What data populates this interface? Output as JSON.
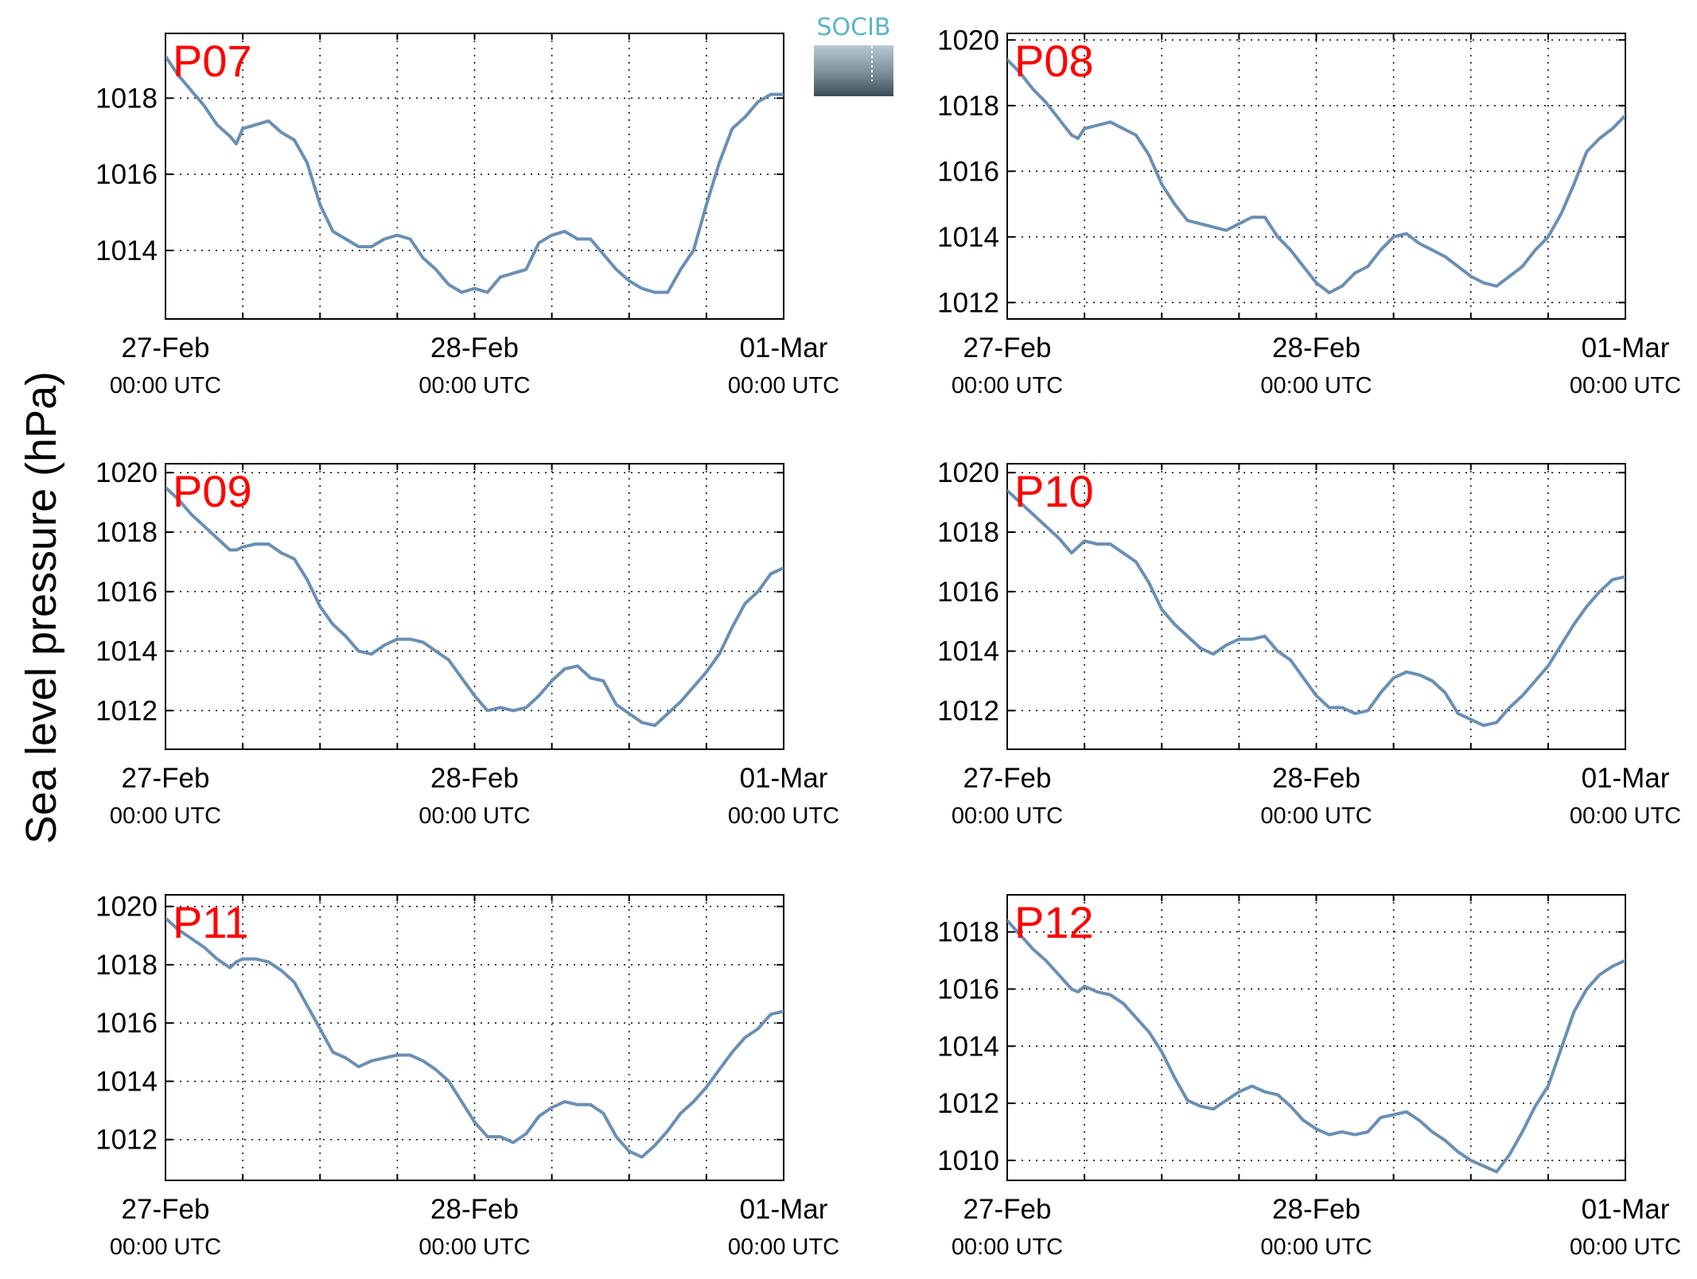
{
  "ylabel": "Sea level pressure (hPa)",
  "logo": {
    "text": "SOCIB"
  },
  "colors": {
    "line": "#6a8fb3",
    "title": "#ff0000",
    "axis": "#000000",
    "logo_text": "#5ab4c8"
  },
  "chart_data": [
    {
      "type": "line",
      "title": "P07",
      "xlabel": "",
      "ylabel": "",
      "x_ticks": [
        {
          "date": "27-Feb",
          "time": "00:00 UTC"
        },
        {
          "date": "28-Feb",
          "time": "00:00 UTC"
        },
        {
          "date": "01-Mar",
          "time": "00:00 UTC"
        }
      ],
      "xlim": [
        0,
        48
      ],
      "ylim": [
        1012.2,
        1019.7
      ],
      "yticks": [
        1014,
        1016,
        1018
      ],
      "grid": true,
      "series": [
        {
          "x": [
            0,
            1,
            2,
            3,
            4,
            5,
            5.5,
            6,
            7,
            8,
            9,
            10,
            11,
            12,
            13,
            14,
            15,
            16,
            17,
            18,
            19,
            20,
            21,
            22,
            23,
            24,
            25,
            26,
            27,
            28,
            29,
            30,
            31,
            32,
            33,
            34,
            35,
            36,
            37,
            38,
            39,
            40,
            41,
            42,
            43,
            44,
            45,
            46,
            47,
            48
          ],
          "y": [
            1019.1,
            1018.6,
            1018.2,
            1017.8,
            1017.3,
            1017.0,
            1016.8,
            1017.2,
            1017.3,
            1017.4,
            1017.1,
            1016.9,
            1016.3,
            1015.2,
            1014.5,
            1014.3,
            1014.1,
            1014.1,
            1014.3,
            1014.4,
            1014.3,
            1013.8,
            1013.5,
            1013.1,
            1012.9,
            1013.0,
            1012.9,
            1013.3,
            1013.4,
            1013.5,
            1014.2,
            1014.4,
            1014.5,
            1014.3,
            1014.3,
            1013.9,
            1013.5,
            1013.2,
            1013.0,
            1012.9,
            1012.9,
            1013.5,
            1014.0,
            1015.2,
            1016.3,
            1017.2,
            1017.5,
            1017.9,
            1018.1,
            1018.1
          ]
        }
      ]
    },
    {
      "type": "line",
      "title": "P08",
      "xlabel": "",
      "ylabel": "",
      "x_ticks": [
        {
          "date": "27-Feb",
          "time": "00:00 UTC"
        },
        {
          "date": "28-Feb",
          "time": "00:00 UTC"
        },
        {
          "date": "01-Mar",
          "time": "00:00 UTC"
        }
      ],
      "xlim": [
        0,
        48
      ],
      "ylim": [
        1011.5,
        1020.2
      ],
      "yticks": [
        1012,
        1014,
        1016,
        1018,
        1020
      ],
      "grid": true,
      "series": [
        {
          "x": [
            0,
            1,
            2,
            3,
            4,
            5,
            5.5,
            6,
            7,
            8,
            9,
            10,
            11,
            12,
            13,
            14,
            15,
            16,
            17,
            18,
            19,
            20,
            21,
            22,
            23,
            24,
            25,
            26,
            27,
            28,
            29,
            30,
            31,
            32,
            33,
            34,
            35,
            36,
            37,
            38,
            39,
            40,
            41,
            42,
            43,
            44,
            45,
            46,
            47,
            48
          ],
          "y": [
            1019.4,
            1019.0,
            1018.5,
            1018.1,
            1017.6,
            1017.1,
            1017.0,
            1017.3,
            1017.4,
            1017.5,
            1017.3,
            1017.1,
            1016.5,
            1015.6,
            1015.0,
            1014.5,
            1014.4,
            1014.3,
            1014.2,
            1014.4,
            1014.6,
            1014.6,
            1014.0,
            1013.6,
            1013.1,
            1012.6,
            1012.3,
            1012.5,
            1012.9,
            1013.1,
            1013.6,
            1014.0,
            1014.1,
            1013.8,
            1013.6,
            1013.4,
            1013.1,
            1012.8,
            1012.6,
            1012.5,
            1012.8,
            1013.1,
            1013.6,
            1014.0,
            1014.7,
            1015.6,
            1016.6,
            1017.0,
            1017.3,
            1017.7
          ]
        }
      ]
    },
    {
      "type": "line",
      "title": "P09",
      "xlabel": "",
      "ylabel": "",
      "x_ticks": [
        {
          "date": "27-Feb",
          "time": "00:00 UTC"
        },
        {
          "date": "28-Feb",
          "time": "00:00 UTC"
        },
        {
          "date": "01-Mar",
          "time": "00:00 UTC"
        }
      ],
      "xlim": [
        0,
        48
      ],
      "ylim": [
        1010.7,
        1020.3
      ],
      "yticks": [
        1012,
        1014,
        1016,
        1018,
        1020
      ],
      "grid": true,
      "series": [
        {
          "x": [
            0,
            1,
            2,
            3,
            4,
            5,
            5.5,
            6,
            7,
            8,
            9,
            10,
            11,
            12,
            13,
            14,
            15,
            16,
            17,
            18,
            19,
            20,
            21,
            22,
            23,
            24,
            25,
            26,
            27,
            28,
            29,
            30,
            31,
            32,
            33,
            34,
            35,
            36,
            37,
            38,
            39,
            40,
            41,
            42,
            43,
            44,
            45,
            46,
            47,
            48
          ],
          "y": [
            1019.5,
            1019.1,
            1018.6,
            1018.2,
            1017.8,
            1017.4,
            1017.4,
            1017.5,
            1017.6,
            1017.6,
            1017.3,
            1017.1,
            1016.4,
            1015.5,
            1014.9,
            1014.5,
            1014.0,
            1013.9,
            1014.2,
            1014.4,
            1014.4,
            1014.3,
            1014.0,
            1013.7,
            1013.1,
            1012.5,
            1012.0,
            1012.1,
            1012.0,
            1012.1,
            1012.5,
            1013.0,
            1013.4,
            1013.5,
            1013.1,
            1013.0,
            1012.2,
            1011.9,
            1011.6,
            1011.5,
            1011.9,
            1012.3,
            1012.8,
            1013.3,
            1013.9,
            1014.8,
            1015.6,
            1016.0,
            1016.6,
            1016.8
          ]
        }
      ]
    },
    {
      "type": "line",
      "title": "P10",
      "xlabel": "",
      "ylabel": "",
      "x_ticks": [
        {
          "date": "27-Feb",
          "time": "00:00 UTC"
        },
        {
          "date": "28-Feb",
          "time": "00:00 UTC"
        },
        {
          "date": "01-Mar",
          "time": "00:00 UTC"
        }
      ],
      "xlim": [
        0,
        48
      ],
      "ylim": [
        1010.7,
        1020.3
      ],
      "yticks": [
        1012,
        1014,
        1016,
        1018,
        1020
      ],
      "grid": true,
      "series": [
        {
          "x": [
            0,
            1,
            2,
            3,
            4,
            5,
            5.5,
            6,
            7,
            8,
            9,
            10,
            11,
            12,
            13,
            14,
            15,
            16,
            17,
            18,
            19,
            20,
            21,
            22,
            23,
            24,
            25,
            26,
            27,
            28,
            29,
            30,
            31,
            32,
            33,
            34,
            35,
            36,
            37,
            38,
            39,
            40,
            41,
            42,
            43,
            44,
            45,
            46,
            47,
            48
          ],
          "y": [
            1019.4,
            1019.0,
            1018.6,
            1018.2,
            1017.8,
            1017.3,
            1017.5,
            1017.7,
            1017.6,
            1017.6,
            1017.3,
            1017.0,
            1016.3,
            1015.4,
            1014.9,
            1014.5,
            1014.1,
            1013.9,
            1014.2,
            1014.4,
            1014.4,
            1014.5,
            1014.0,
            1013.7,
            1013.1,
            1012.5,
            1012.1,
            1012.1,
            1011.9,
            1012.0,
            1012.6,
            1013.1,
            1013.3,
            1013.2,
            1013.0,
            1012.6,
            1011.9,
            1011.7,
            1011.5,
            1011.6,
            1012.1,
            1012.5,
            1013.0,
            1013.5,
            1014.2,
            1014.9,
            1015.5,
            1016.0,
            1016.4,
            1016.5
          ]
        }
      ]
    },
    {
      "type": "line",
      "title": "P11",
      "xlabel": "",
      "ylabel": "",
      "x_ticks": [
        {
          "date": "27-Feb",
          "time": "00:00 UTC"
        },
        {
          "date": "28-Feb",
          "time": "00:00 UTC"
        },
        {
          "date": "01-Mar",
          "time": "00:00 UTC"
        }
      ],
      "xlim": [
        0,
        48
      ],
      "ylim": [
        1010.6,
        1020.4
      ],
      "yticks": [
        1012,
        1014,
        1016,
        1018,
        1020
      ],
      "grid": true,
      "series": [
        {
          "x": [
            0,
            1,
            2,
            3,
            4,
            5,
            5.5,
            6,
            7,
            8,
            9,
            10,
            11,
            12,
            13,
            14,
            15,
            16,
            17,
            18,
            19,
            20,
            21,
            22,
            23,
            24,
            25,
            26,
            27,
            28,
            29,
            30,
            31,
            32,
            33,
            34,
            35,
            36,
            37,
            38,
            39,
            40,
            41,
            42,
            43,
            44,
            45,
            46,
            47,
            48
          ],
          "y": [
            1019.6,
            1019.2,
            1018.9,
            1018.6,
            1018.2,
            1017.9,
            1018.1,
            1018.2,
            1018.2,
            1018.1,
            1017.8,
            1017.4,
            1016.6,
            1015.8,
            1015.0,
            1014.8,
            1014.5,
            1014.7,
            1014.8,
            1014.9,
            1014.9,
            1014.7,
            1014.4,
            1014.0,
            1013.3,
            1012.6,
            1012.1,
            1012.1,
            1011.9,
            1012.2,
            1012.8,
            1013.1,
            1013.3,
            1013.2,
            1013.2,
            1012.9,
            1012.1,
            1011.6,
            1011.4,
            1011.8,
            1012.3,
            1012.9,
            1013.3,
            1013.8,
            1014.4,
            1015.0,
            1015.5,
            1015.8,
            1016.3,
            1016.4
          ]
        }
      ]
    },
    {
      "type": "line",
      "title": "P12",
      "xlabel": "",
      "ylabel": "",
      "x_ticks": [
        {
          "date": "27-Feb",
          "time": "00:00 UTC"
        },
        {
          "date": "28-Feb",
          "time": "00:00 UTC"
        },
        {
          "date": "01-Mar",
          "time": "00:00 UTC"
        }
      ],
      "xlim": [
        0,
        48
      ],
      "ylim": [
        1009.3,
        1019.3
      ],
      "yticks": [
        1010,
        1012,
        1014,
        1016,
        1018
      ],
      "grid": true,
      "series": [
        {
          "x": [
            0,
            1,
            2,
            3,
            4,
            5,
            5.5,
            6,
            7,
            8,
            9,
            10,
            11,
            12,
            13,
            14,
            15,
            16,
            17,
            18,
            19,
            20,
            21,
            22,
            23,
            24,
            25,
            26,
            27,
            28,
            29,
            30,
            31,
            32,
            33,
            34,
            35,
            36,
            37,
            38,
            39,
            40,
            41,
            42,
            43,
            44,
            45,
            46,
            47,
            48
          ],
          "y": [
            1018.4,
            1017.9,
            1017.4,
            1017.0,
            1016.5,
            1016.0,
            1015.9,
            1016.1,
            1015.9,
            1015.8,
            1015.5,
            1015.0,
            1014.5,
            1013.8,
            1012.9,
            1012.1,
            1011.9,
            1011.8,
            1012.1,
            1012.4,
            1012.6,
            1012.4,
            1012.3,
            1011.9,
            1011.4,
            1011.1,
            1010.9,
            1011.0,
            1010.9,
            1011.0,
            1011.5,
            1011.6,
            1011.7,
            1011.4,
            1011.0,
            1010.7,
            1010.3,
            1010.0,
            1009.8,
            1009.6,
            1010.2,
            1011.0,
            1011.9,
            1012.6,
            1013.9,
            1015.2,
            1016.0,
            1016.5,
            1016.8,
            1017.0
          ]
        }
      ]
    }
  ]
}
